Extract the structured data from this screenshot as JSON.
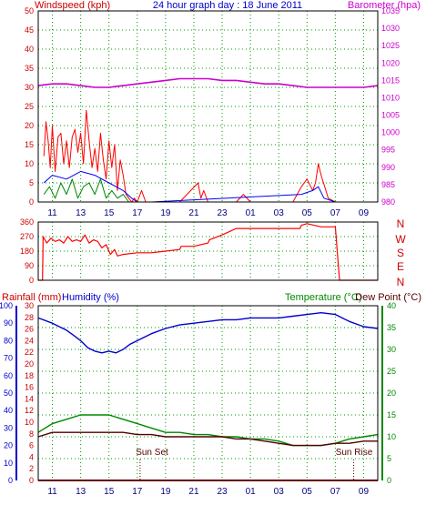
{
  "header": {
    "title": "24 hour graph day : 18 June 2011",
    "left_label": "Windspeed (kph)",
    "right_label": "Barometer (hpa)",
    "title_color": "#0000cc",
    "left_color": "#cc0000",
    "right_color": "#cc00cc"
  },
  "bottom_header": {
    "rainfall_label": "Rainfall (mm)",
    "humidity_label": "Humidity (%)",
    "temperature_label": "Temperature (°C)",
    "dewpoint_label": "Dew Point (°C)"
  },
  "compass": {
    "labels": [
      "N",
      "W",
      "S",
      "E",
      "N"
    ],
    "color": "#cc0000"
  },
  "x_ticks": [
    "11",
    "13",
    "15",
    "17",
    "19",
    "21",
    "23",
    "01",
    "03",
    "05",
    "07",
    "09"
  ],
  "annotations": {
    "sunset": "Sun Set",
    "sunrise": "Sun Rise"
  },
  "chart_data": [
    {
      "type": "line",
      "name": "wind-and-barometer",
      "x_unit": "hours since 10:00",
      "y_left": {
        "ticks": [
          0,
          5,
          10,
          15,
          20,
          25,
          30,
          35,
          40,
          45,
          50
        ],
        "range": [
          0,
          50
        ]
      },
      "y_right": {
        "ticks": [
          980,
          985,
          990,
          995,
          1000,
          1005,
          1010,
          1015,
          1020,
          1025,
          1030,
          1035
        ],
        "range": [
          980,
          1035
        ]
      },
      "grid": true,
      "series": [
        {
          "color": "#ff0000",
          "axis": "left",
          "x": [
            0.4,
            0.55,
            0.7,
            0.85,
            1.0,
            1.2,
            1.4,
            1.6,
            1.8,
            2.0,
            2.2,
            2.4,
            2.6,
            2.8,
            3.0,
            3.2,
            3.4,
            3.6,
            3.8,
            4.0,
            4.2,
            4.4,
            4.6,
            4.8,
            5.0,
            5.2,
            5.4,
            5.6,
            5.8,
            6.0,
            6.2,
            6.4,
            6.6,
            6.8,
            7.0,
            7.3,
            7.6,
            8.0,
            9.0,
            10.0,
            11.3,
            11.5,
            11.7,
            12.0,
            13.0,
            14.0,
            14.5,
            15.0,
            17.0,
            18.0,
            18.6,
            19.0,
            19.4,
            19.6,
            19.8,
            20.0,
            20.5,
            21.0,
            22.0,
            23.0,
            24.0
          ],
          "y": [
            12,
            21,
            16,
            9,
            20,
            8,
            17,
            18,
            10,
            16,
            9,
            17,
            19,
            13,
            18,
            10,
            24,
            16,
            9,
            14,
            8,
            18,
            11,
            6,
            16,
            9,
            15,
            3,
            11,
            7,
            2,
            1,
            0,
            1,
            0,
            3,
            0,
            0,
            0,
            0,
            5,
            1,
            3,
            0,
            0,
            0,
            2,
            0,
            0,
            0,
            4,
            6,
            3,
            5,
            10,
            7,
            1,
            0,
            0,
            0,
            0
          ]
        },
        {
          "color": "#0000ff",
          "axis": "left",
          "x": [
            0.4,
            1.0,
            2.0,
            3.0,
            4.0,
            5.0,
            6.0,
            6.6,
            7.0,
            8.0,
            18.6,
            19.4,
            19.8,
            20.2,
            21.0,
            24.0
          ],
          "y": [
            5,
            7,
            6,
            8,
            7,
            5,
            3,
            1,
            0,
            0,
            2,
            3,
            4,
            1,
            0,
            0
          ]
        },
        {
          "color": "#008800",
          "axis": "left",
          "x": [
            0.4,
            0.8,
            1.2,
            1.6,
            2.0,
            2.4,
            2.8,
            3.2,
            3.6,
            4.0,
            4.4,
            4.8,
            5.2,
            5.6,
            6.0,
            6.4,
            7.0,
            8.0,
            24.0
          ],
          "y": [
            2,
            4,
            1,
            5,
            2,
            6,
            1,
            4,
            5,
            2,
            6,
            1,
            3,
            1,
            2,
            0,
            0,
            0,
            0
          ]
        },
        {
          "color": "#cc00cc",
          "axis": "right",
          "x": [
            0,
            1,
            2,
            3,
            4,
            5,
            6,
            7,
            8,
            9,
            10,
            11,
            12,
            13,
            14,
            15,
            16,
            17,
            18,
            19,
            20,
            21,
            22,
            23,
            24
          ],
          "y": [
            1013.5,
            1014,
            1014,
            1013.5,
            1013,
            1013,
            1013.5,
            1014,
            1014.5,
            1015,
            1015.5,
            1015.5,
            1015.5,
            1015,
            1015,
            1014.5,
            1014,
            1014,
            1013.5,
            1013,
            1013,
            1013,
            1013,
            1013,
            1013.5
          ]
        }
      ]
    },
    {
      "type": "line",
      "name": "wind-direction",
      "x_unit": "hours since 10:00",
      "y": {
        "ticks": [
          0,
          90,
          180,
          270,
          360
        ],
        "range": [
          0,
          360
        ]
      },
      "grid": true,
      "series": [
        {
          "color": "#ff0000",
          "x": [
            0,
            0.3,
            0.35,
            0.6,
            0.9,
            1.2,
            1.5,
            1.8,
            2.1,
            2.4,
            2.7,
            3.0,
            3.3,
            3.6,
            3.9,
            4.2,
            4.5,
            4.8,
            5.1,
            5.4,
            5.6,
            6.0,
            7.0,
            8.0,
            9.0,
            10.0,
            10.1,
            11.0,
            12.0,
            12.1,
            13.0,
            14.0,
            16.0,
            18.5,
            18.6,
            19.0,
            20.0,
            21.0,
            21.3,
            21.4,
            22.0,
            24.0
          ],
          "y": [
            0,
            0,
            270,
            230,
            260,
            240,
            250,
            230,
            270,
            240,
            250,
            240,
            280,
            230,
            250,
            240,
            200,
            220,
            160,
            190,
            150,
            160,
            170,
            170,
            180,
            190,
            210,
            210,
            230,
            250,
            280,
            320,
            320,
            320,
            340,
            350,
            330,
            330,
            0,
            0,
            0,
            0
          ]
        }
      ]
    },
    {
      "type": "line",
      "name": "rain-humidity-temperature",
      "x_unit": "hours since 10:00",
      "y_rain": {
        "ticks": [
          0,
          2,
          4,
          6,
          8,
          10,
          12,
          14,
          16,
          18,
          20,
          22,
          24,
          26,
          28,
          30
        ],
        "range": [
          0,
          30
        ]
      },
      "y_humidity": {
        "ticks": [
          0,
          10,
          20,
          30,
          40,
          50,
          60,
          70,
          80,
          90,
          100
        ],
        "range": [
          0,
          100
        ]
      },
      "y_temperature": {
        "ticks": [
          0,
          5,
          10,
          15,
          20,
          25,
          30,
          35,
          40
        ],
        "range": [
          0,
          40
        ]
      },
      "grid": true,
      "series": [
        {
          "color": "#0000cc",
          "axis": "humidity",
          "x": [
            0,
            1,
            2,
            2.5,
            3,
            3.5,
            4,
            4.5,
            5,
            5.5,
            6,
            6.5,
            7,
            8,
            9,
            10,
            11,
            12,
            13,
            14,
            15,
            16,
            17,
            18,
            19,
            20,
            21,
            22,
            23,
            24
          ],
          "y": [
            93,
            90,
            86,
            83,
            80,
            76,
            74,
            73,
            74,
            73,
            75,
            78,
            80,
            84,
            87,
            89,
            90,
            91,
            92,
            92,
            93,
            93,
            93,
            94,
            95,
            96,
            95,
            91,
            88,
            87
          ]
        },
        {
          "color": "#008800",
          "axis": "temperature",
          "x": [
            0,
            1,
            2,
            3,
            4,
            5,
            6,
            7,
            8,
            9,
            10,
            11,
            12,
            13,
            14,
            15,
            16,
            17,
            18,
            19,
            20,
            21,
            22,
            23,
            24
          ],
          "y": [
            11,
            13,
            14,
            15,
            15,
            15,
            14,
            13,
            12,
            11,
            11,
            10.5,
            10.5,
            10,
            10,
            9.5,
            9.5,
            9,
            8,
            8,
            8,
            8.5,
            9.5,
            10,
            10.5
          ]
        },
        {
          "color": "#550000",
          "axis": "temperature",
          "x": [
            0,
            1,
            2,
            3,
            4,
            5,
            6,
            7,
            8,
            9,
            10,
            11,
            12,
            13,
            14,
            15,
            16,
            17,
            18,
            19,
            20,
            21,
            22,
            23,
            24
          ],
          "y": [
            10,
            11,
            11,
            11,
            11,
            11,
            11,
            10.5,
            10.5,
            10,
            10,
            10,
            10,
            10,
            9.5,
            9.5,
            9,
            8.5,
            8,
            8,
            8,
            8.5,
            8.5,
            9,
            9
          ]
        },
        {
          "color": "#cc0000",
          "axis": "rain",
          "x": [
            0,
            24
          ],
          "y": [
            0,
            0
          ]
        }
      ]
    }
  ]
}
